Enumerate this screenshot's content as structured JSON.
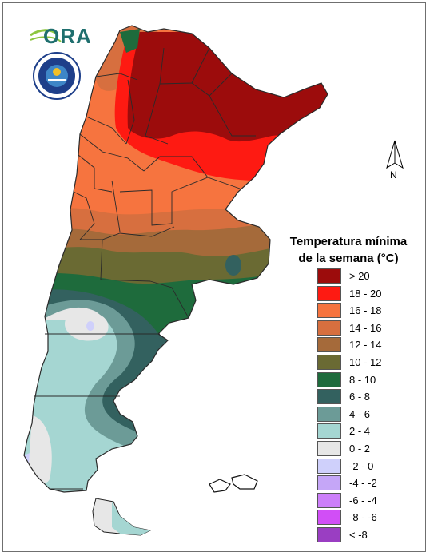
{
  "logos": {
    "ora_text": "ORA",
    "smn_ring_text": "SERVICIO METEOROLOGICO NACIONAL",
    "smn_bottom_text": "ARGENTINA",
    "smn_center_text": "SMN"
  },
  "north_arrow": {
    "label": "N"
  },
  "legend": {
    "title_line1": "Temperatura mínima",
    "title_line2": "de la semana (°C)",
    "items": [
      {
        "label": "> 20",
        "color": "#9c0c0c"
      },
      {
        "label": "18 - 20",
        "color": "#fe1a12"
      },
      {
        "label": "16 - 18",
        "color": "#f6743f"
      },
      {
        "label": "14 - 16",
        "color": "#d76f3f"
      },
      {
        "label": "12 - 14",
        "color": "#a56a3a"
      },
      {
        "label": "10 - 12",
        "color": "#6a6a33"
      },
      {
        "label": "8 - 10",
        "color": "#1e6b3c"
      },
      {
        "label": "6 - 8",
        "color": "#33615f"
      },
      {
        "label": "4 - 6",
        "color": "#6c9b97"
      },
      {
        "label": "2 - 4",
        "color": "#a5d6d2"
      },
      {
        "label": "0 - 2",
        "color": "#e7e7e7"
      },
      {
        "label": "-2 - 0",
        "color": "#cfd0fb"
      },
      {
        "label": "-4 - -2",
        "color": "#c5a6f7"
      },
      {
        "label": "-6 - -4",
        "color": "#cc7ff9"
      },
      {
        "label": "-8 - -6",
        "color": "#d14ef6"
      },
      {
        "label": "< -8",
        "color": "#9a3ec2"
      }
    ]
  }
}
